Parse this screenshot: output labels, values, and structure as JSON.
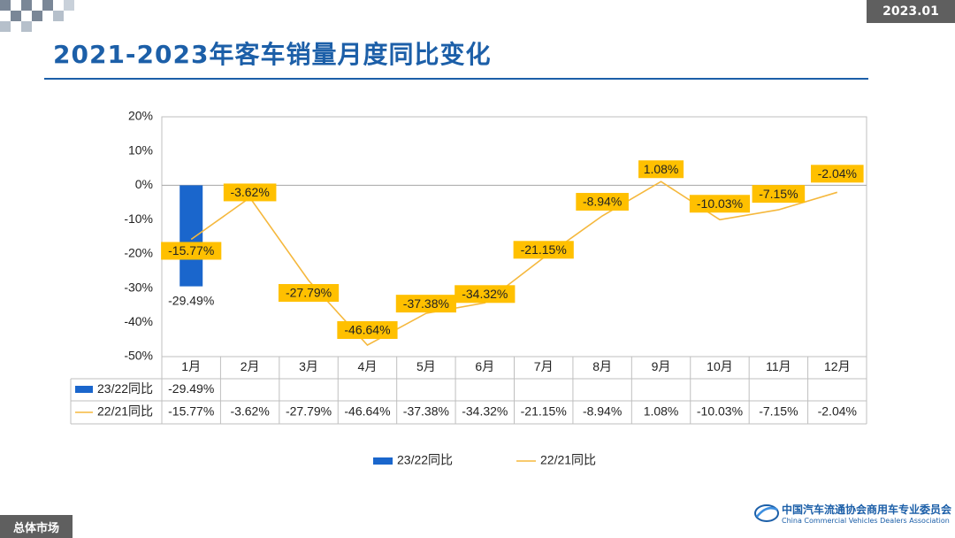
{
  "header": {
    "date": "2023.01",
    "title": "2021-2023年客车销量月度同比变化"
  },
  "footer": {
    "section": "总体市场",
    "org_cn": "中国汽车流通协会商用车专业委员会",
    "org_en": "China Commercial Vehicles Dealers Association"
  },
  "colors": {
    "brand": "#1c5fa8",
    "bar": "#1a66cc",
    "line": "#f5b83d",
    "label_bg": "#ffc000",
    "badge": "#5f5f5f"
  },
  "chart_data": {
    "type": "bar-line-combo",
    "title": "2021-2023年客车销量月度同比变化",
    "categories": [
      "1月",
      "2月",
      "3月",
      "4月",
      "5月",
      "6月",
      "7月",
      "8月",
      "9月",
      "10月",
      "11月",
      "12月"
    ],
    "y_ticks": [
      "20%",
      "10%",
      "0%",
      "-10%",
      "-20%",
      "-30%",
      "-40%",
      "-50%"
    ],
    "ylim": [
      -50,
      20
    ],
    "series": [
      {
        "name": "23/22同比",
        "type": "bar",
        "values": [
          -29.49,
          null,
          null,
          null,
          null,
          null,
          null,
          null,
          null,
          null,
          null,
          null
        ],
        "labels": [
          "-29.49%",
          "",
          "",
          "",
          "",
          "",
          "",
          "",
          "",
          "",
          "",
          ""
        ]
      },
      {
        "name": "22/21同比",
        "type": "line",
        "values": [
          -15.77,
          -3.62,
          -27.79,
          -46.64,
          -37.38,
          -34.32,
          -21.15,
          -8.94,
          1.08,
          -10.03,
          -7.15,
          -2.04
        ],
        "labels": [
          "-15.77%",
          "-3.62%",
          "-27.79%",
          "-46.64%",
          "-37.38%",
          "-34.32%",
          "-21.15%",
          "-8.94%",
          "1.08%",
          "-10.03%",
          "-7.15%",
          "-2.04%"
        ]
      }
    ],
    "legend": [
      "23/22同比",
      "22/21同比"
    ],
    "legend_position": "bottom",
    "data_table": true
  }
}
